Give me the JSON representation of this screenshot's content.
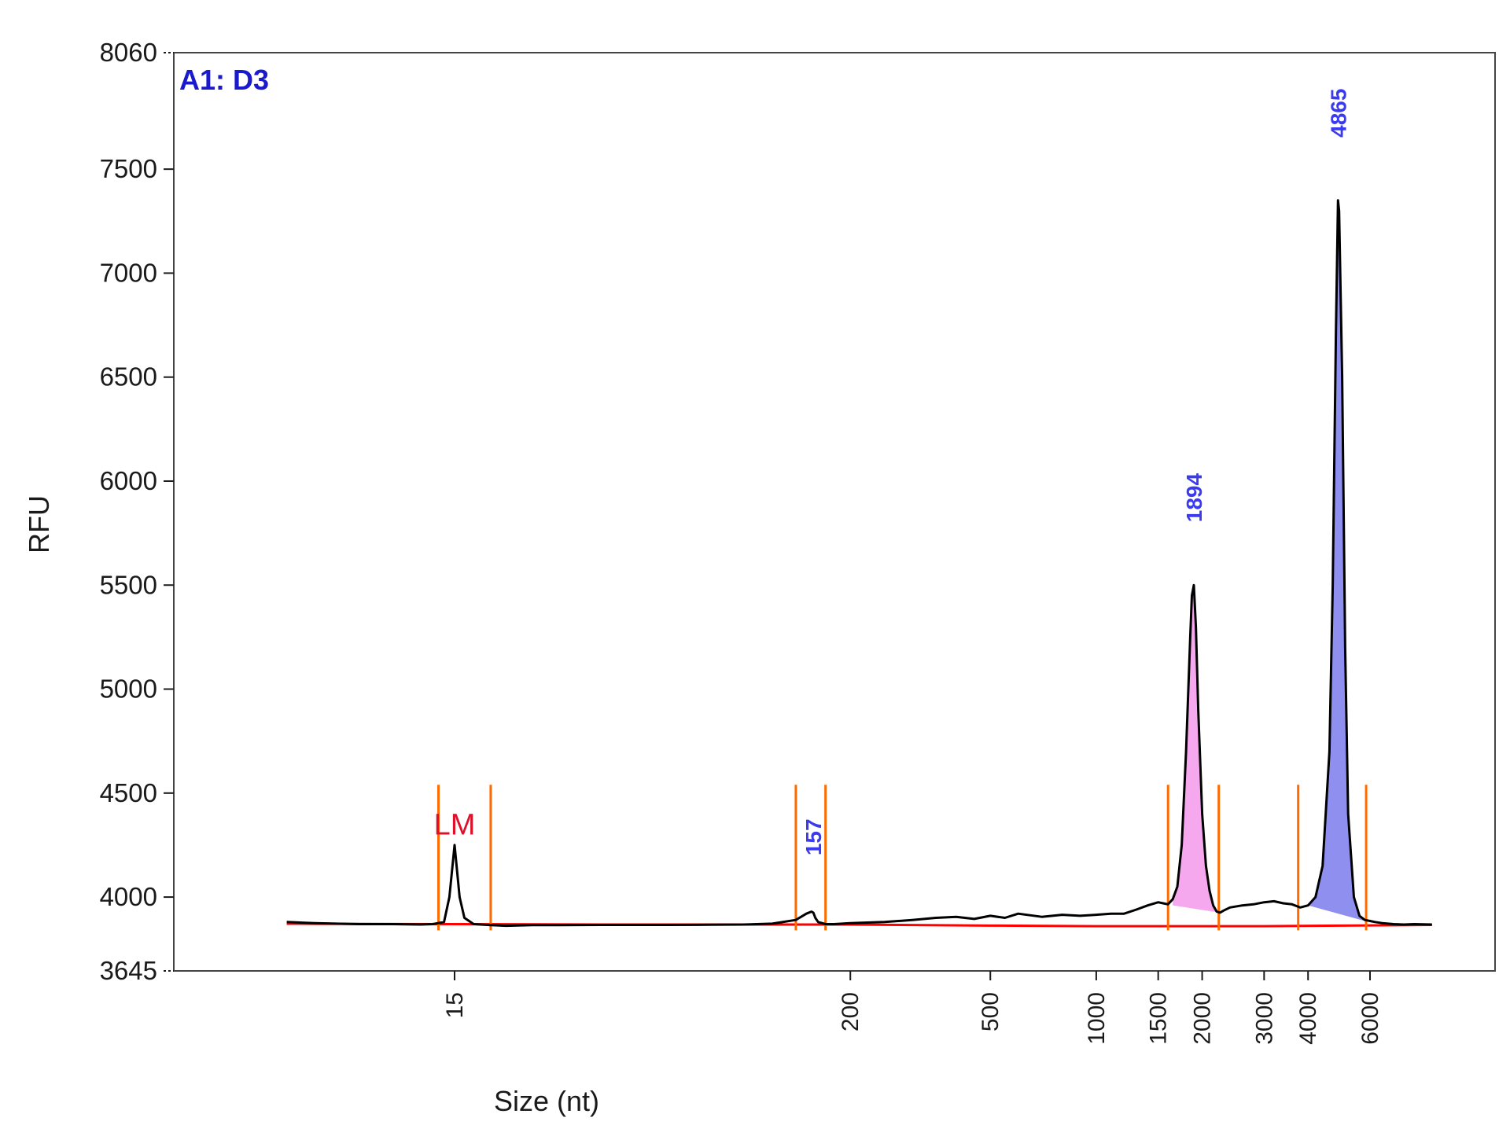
{
  "chart_data": {
    "type": "line",
    "panel_title": "A1: D3",
    "ylabel": "RFU",
    "xlabel": "Size (nt)",
    "ylim": [
      3645,
      8060
    ],
    "yticks": [
      "3645",
      "4000",
      "4500",
      "5000",
      "5500",
      "6000",
      "6500",
      "7000",
      "7500",
      "8060"
    ],
    "x_scale": "log",
    "xticks": [
      "15",
      "200",
      "500",
      "1000",
      "1500",
      "2000",
      "3000",
      "4000",
      "6000"
    ],
    "colors": {
      "trace": "#000000",
      "baseline": "#ff0000",
      "marker": "#ff6a00",
      "peak_fill_1894": "#f6a8ee",
      "peak_fill_4865": "#8f8ff0",
      "panel_title": "#1a1acc",
      "peak_label": "#3a3aee",
      "lower_marker_label": "#e0102a"
    },
    "peaks": [
      {
        "label": "LM",
        "size_nt": 15,
        "rfu": 4250,
        "label_color": "lower_marker_label"
      },
      {
        "label": "157",
        "size_nt": 157,
        "rfu": 3930,
        "label_color": "peak_label"
      },
      {
        "label": "1894",
        "size_nt": 1894,
        "rfu": 5500,
        "label_color": "peak_label",
        "fill": "peak_fill_1894"
      },
      {
        "label": "4865",
        "size_nt": 4865,
        "rfu": 7350,
        "label_color": "peak_label",
        "fill": "peak_fill_4865"
      }
    ],
    "series": [
      {
        "x": [
          5,
          6,
          8,
          10,
          12,
          13,
          14,
          14.5,
          15,
          15.5,
          16,
          17,
          19,
          21,
          25,
          30,
          40,
          60,
          80,
          100,
          120,
          140,
          150,
          155,
          157,
          159,
          162,
          170,
          180,
          200,
          250,
          300,
          350,
          400,
          450,
          500,
          550,
          600,
          700,
          800,
          900,
          1000,
          1100,
          1200,
          1300,
          1400,
          1500,
          1550,
          1600,
          1650,
          1700,
          1750,
          1800,
          1850,
          1870,
          1894,
          1920,
          1950,
          2000,
          2050,
          2100,
          2150,
          2200,
          2250,
          2300,
          2400,
          2600,
          2800,
          3000,
          3200,
          3400,
          3600,
          3800,
          4000,
          4200,
          4400,
          4600,
          4700,
          4800,
          4865,
          4900,
          5000,
          5100,
          5200,
          5400,
          5600,
          5800,
          6000,
          6200,
          6500,
          7000,
          7500,
          8000,
          9000
        ],
        "y": [
          3880,
          3875,
          3870,
          3870,
          3868,
          3870,
          3880,
          4000,
          4250,
          4000,
          3900,
          3870,
          3865,
          3862,
          3865,
          3865,
          3866,
          3866,
          3867,
          3868,
          3872,
          3890,
          3920,
          3930,
          3925,
          3900,
          3880,
          3870,
          3870,
          3875,
          3880,
          3890,
          3900,
          3905,
          3895,
          3910,
          3900,
          3920,
          3905,
          3915,
          3910,
          3915,
          3920,
          3920,
          3940,
          3960,
          3975,
          3970,
          3965,
          3990,
          4050,
          4250,
          4700,
          5250,
          5450,
          5500,
          5300,
          4900,
          4400,
          4150,
          4030,
          3960,
          3930,
          3925,
          3935,
          3950,
          3960,
          3965,
          3975,
          3980,
          3970,
          3965,
          3950,
          3960,
          4000,
          4150,
          4700,
          5500,
          6700,
          7350,
          7300,
          6500,
          5200,
          4400,
          4000,
          3910,
          3890,
          3885,
          3880,
          3875,
          3870,
          3868,
          3870,
          3868
        ]
      }
    ]
  }
}
